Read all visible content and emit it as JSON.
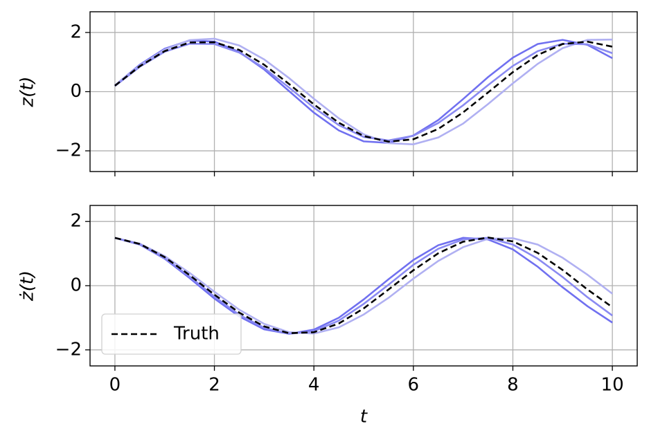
{
  "chart_data": [
    {
      "type": "line",
      "y_label": "z(t)",
      "grid": true,
      "x": [
        0,
        0.5,
        1,
        1.5,
        2,
        2.5,
        3,
        3.5,
        4,
        4.5,
        5,
        5.5,
        6,
        6.5,
        7,
        7.5,
        8,
        8.5,
        9,
        9.5,
        10
      ],
      "xlim": [
        -0.5,
        10.5
      ],
      "xticks": [
        0,
        2,
        4,
        6,
        8,
        10
      ],
      "ylim": [
        -2.7,
        2.7
      ],
      "yticks": [
        {
          "value": -2,
          "label": "−2"
        },
        0,
        2
      ],
      "series": [
        {
          "color": "#7070f0",
          "values": [
            0.21,
            0.91,
            1.45,
            1.73,
            1.69,
            1.34,
            0.75,
            0.02,
            -0.71,
            -1.31,
            -1.68,
            -1.73,
            -1.48,
            -0.96,
            -0.25,
            0.49,
            1.15,
            1.61,
            1.75,
            1.58,
            1.13
          ]
        },
        {
          "color": "#b0b0f2",
          "values": [
            0.21,
            0.88,
            1.42,
            1.74,
            1.79,
            1.56,
            1.09,
            0.46,
            -0.24,
            -0.9,
            -1.44,
            -1.74,
            -1.78,
            -1.55,
            -1.08,
            -0.42,
            0.28,
            0.94,
            1.47,
            1.75,
            1.76
          ]
        },
        {
          "color": "#8a8af2",
          "values": [
            0.19,
            0.84,
            1.35,
            1.62,
            1.61,
            1.32,
            0.8,
            0.14,
            -0.54,
            -1.13,
            -1.53,
            -1.65,
            -1.49,
            -1.06,
            -0.46,
            0.22,
            0.87,
            1.37,
            1.62,
            1.6,
            1.3
          ]
        },
        {
          "color": "#000000",
          "style": "dashed",
          "values": [
            0.2,
            0.86,
            1.37,
            1.66,
            1.67,
            1.41,
            0.91,
            0.26,
            -0.43,
            -1.05,
            -1.5,
            -1.69,
            -1.61,
            -1.26,
            -0.7,
            -0.03,
            0.66,
            1.24,
            1.61,
            1.69,
            1.52
          ]
        }
      ]
    },
    {
      "type": "line",
      "y_label": "ż(t)",
      "x_label": "t",
      "grid": true,
      "legend": "lower left",
      "x": [
        0,
        0.5,
        1,
        1.5,
        2,
        2.5,
        3,
        3.5,
        4,
        4.5,
        5,
        5.5,
        6,
        6.5,
        7,
        7.5,
        8,
        8.5,
        9,
        9.5,
        10
      ],
      "xlim": [
        -0.5,
        10.5
      ],
      "xticks": [
        0,
        2,
        4,
        6,
        8,
        10
      ],
      "ylim": [
        -2.5,
        2.5
      ],
      "yticks": [
        {
          "value": -2,
          "label": "−2"
        },
        0,
        2
      ],
      "series": [
        {
          "color": "#7070f0",
          "values": [
            1.49,
            1.28,
            0.84,
            0.24,
            -0.4,
            -0.96,
            -1.36,
            -1.5,
            -1.37,
            -1.0,
            -0.43,
            0.2,
            0.8,
            1.26,
            1.49,
            1.44,
            1.13,
            0.59,
            -0.05,
            -0.64,
            -1.15
          ]
        },
        {
          "color": "#b0b0f2",
          "values": [
            1.49,
            1.31,
            0.92,
            0.4,
            -0.19,
            -0.75,
            -1.19,
            -1.45,
            -1.49,
            -1.3,
            -0.9,
            -0.38,
            0.22,
            0.77,
            1.2,
            1.46,
            1.48,
            1.28,
            0.87,
            0.34,
            -0.25
          ]
        },
        {
          "color": "#8a8af2",
          "values": [
            1.49,
            1.29,
            0.86,
            0.29,
            -0.34,
            -0.91,
            -1.31,
            -1.5,
            -1.42,
            -1.09,
            -0.57,
            0.03,
            0.65,
            1.15,
            1.44,
            1.49,
            1.28,
            0.84,
            0.27,
            -0.36,
            -0.93
          ]
        },
        {
          "name": "Truth",
          "color": "#000000",
          "style": "dashed",
          "values": [
            1.49,
            1.3,
            0.89,
            0.33,
            -0.28,
            -0.84,
            -1.27,
            -1.48,
            -1.45,
            -1.18,
            -0.71,
            -0.12,
            0.48,
            1.01,
            1.37,
            1.5,
            1.38,
            1.02,
            0.49,
            -0.12,
            -0.67
          ]
        }
      ]
    }
  ]
}
